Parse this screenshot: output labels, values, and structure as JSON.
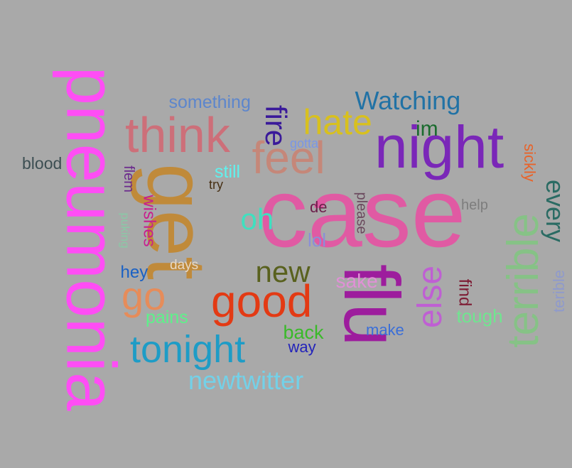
{
  "cloud": {
    "background": "#a9a9a9",
    "words": [
      {
        "text": "pneumonia",
        "color": "#ff4df5"
      },
      {
        "text": "case",
        "color": "#e05aa3"
      },
      {
        "text": "night",
        "color": "#7a27b8"
      },
      {
        "text": "get",
        "color": "#c08a3a"
      },
      {
        "text": "flu",
        "color": "#9d1d9d"
      },
      {
        "text": "think",
        "color": "#cd6f79"
      },
      {
        "text": "feel",
        "color": "#c58779"
      },
      {
        "text": "good",
        "color": "#e33a14"
      },
      {
        "text": "tonight",
        "color": "#1e9cc6"
      },
      {
        "text": "terrible",
        "color": "#86c286"
      },
      {
        "text": "hate",
        "color": "#d8c01e"
      },
      {
        "text": "Watching",
        "color": "#2172a5"
      },
      {
        "text": "fire",
        "color": "#3a1a9a"
      },
      {
        "text": "new",
        "color": "#59611e"
      },
      {
        "text": "else",
        "color": "#bf5fd3"
      },
      {
        "text": "go",
        "color": "#e68c5a"
      },
      {
        "text": "oh",
        "color": "#3fe0bf"
      },
      {
        "text": "newtwitter",
        "color": "#73d1e8"
      },
      {
        "text": "every",
        "color": "#2a6b63"
      },
      {
        "text": "something",
        "color": "#5d86cc"
      },
      {
        "text": "blood",
        "color": "#3c4e52"
      },
      {
        "text": "still",
        "color": "#5ff2ee"
      },
      {
        "text": "flem",
        "color": "#6b2a8c"
      },
      {
        "text": "wishes",
        "color": "#c81e8e"
      },
      {
        "text": "puking",
        "color": "#8ac9a6"
      },
      {
        "text": "hey",
        "color": "#1a61c4"
      },
      {
        "text": "days",
        "color": "#e6d9c7"
      },
      {
        "text": "pains",
        "color": "#5df28a"
      },
      {
        "text": "back",
        "color": "#3aba2a"
      },
      {
        "text": "way",
        "color": "#2323ba"
      },
      {
        "text": "make",
        "color": "#3a6ed8"
      },
      {
        "text": "sake",
        "color": "#e090d6"
      },
      {
        "text": "im",
        "color": "#1a6b2e"
      },
      {
        "text": "gotta",
        "color": "#7a96e6"
      },
      {
        "text": "try",
        "color": "#473014"
      },
      {
        "text": "de",
        "color": "#6b1f4a"
      },
      {
        "text": "please",
        "color": "#6b4a5e"
      },
      {
        "text": "lol",
        "color": "#8a8fd8"
      },
      {
        "text": "help",
        "color": "#7d7d7d"
      },
      {
        "text": "sickly",
        "color": "#e8632a"
      },
      {
        "text": "find",
        "color": "#7d1a32"
      },
      {
        "text": "tough",
        "color": "#6fe68f"
      },
      {
        "text": "terible",
        "color": "#8f9acc"
      }
    ]
  }
}
